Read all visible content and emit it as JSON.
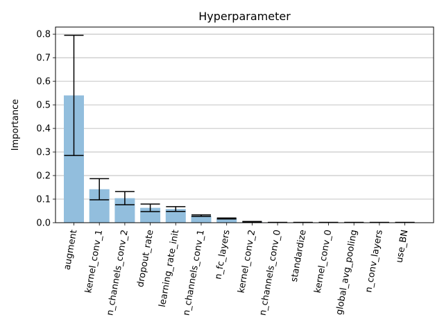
{
  "chart_data": {
    "type": "bar",
    "title": "Hyperparameter",
    "xlabel": "",
    "ylabel": "Importance",
    "ylim": [
      0,
      0.83
    ],
    "yticks": [
      0.0,
      0.1,
      0.2,
      0.3,
      0.4,
      0.5,
      0.6,
      0.7,
      0.8
    ],
    "ytick_labels": [
      "0.0",
      "0.1",
      "0.2",
      "0.3",
      "0.4",
      "0.5",
      "0.6",
      "0.7",
      "0.8"
    ],
    "grid": "horizontal",
    "categories": [
      "augment",
      "kernel_conv_1",
      "n_channels_conv_2",
      "dropout_rate",
      "learning_rate_init",
      "n_channels_conv_1",
      "n_fc_layers",
      "kernel_conv_2",
      "n_channels_conv_0",
      "standardize",
      "kernel_conv_0",
      "global_avg_pooling",
      "n_conv_layers",
      "use_BN"
    ],
    "values": [
      0.54,
      0.142,
      0.104,
      0.063,
      0.058,
      0.03,
      0.018,
      0.004,
      0.001,
      0.001,
      0.001,
      0.001,
      0.001,
      0.001
    ],
    "errors": [
      0.255,
      0.045,
      0.028,
      0.016,
      0.01,
      0.003,
      0.002,
      0.001,
      0.0,
      0.0,
      0.0,
      0.0,
      0.0,
      0.0
    ],
    "colors": {
      "bar": "#92bedd",
      "error": "#000000",
      "grid": "#b0b0b0",
      "axis": "#000000"
    }
  }
}
